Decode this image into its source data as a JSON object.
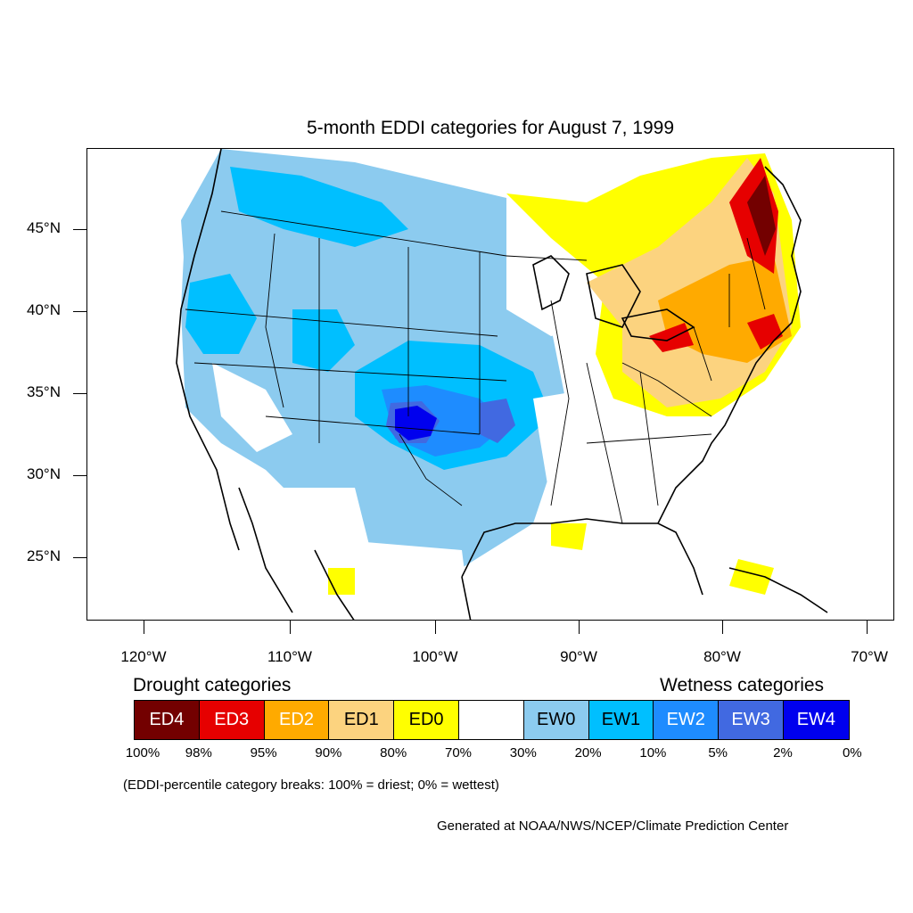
{
  "title": "5-month EDDI categories for August 7, 1999",
  "lat_labels": [
    "45°N",
    "40°N",
    "35°N",
    "30°N",
    "25°N"
  ],
  "lon_labels": [
    "120°W",
    "110°W",
    "100°W",
    "90°W",
    "80°W",
    "70°W"
  ],
  "legend": {
    "drought_heading": "Drought categories",
    "wetness_heading": "Wetness categories",
    "categories": [
      {
        "label": "ED4",
        "color": "#730000",
        "text_color": "#ffffff"
      },
      {
        "label": "ED3",
        "color": "#e60000",
        "text_color": "#ffffff"
      },
      {
        "label": "ED2",
        "color": "#ffaa00",
        "text_color": "#ffffff"
      },
      {
        "label": "ED1",
        "color": "#fcd37f",
        "text_color": "#000000"
      },
      {
        "label": "ED0",
        "color": "#ffff00",
        "text_color": "#000000"
      },
      {
        "label": "",
        "color": "#ffffff",
        "text_color": "#000000"
      },
      {
        "label": "EW0",
        "color": "#8ccbef",
        "text_color": "#000000"
      },
      {
        "label": "EW1",
        "color": "#00bfff",
        "text_color": "#000000"
      },
      {
        "label": "EW2",
        "color": "#1e8cff",
        "text_color": "#ffffff"
      },
      {
        "label": "EW3",
        "color": "#4169e1",
        "text_color": "#ffffff"
      },
      {
        "label": "EW4",
        "color": "#0000ee",
        "text_color": "#ffffff"
      }
    ],
    "percent_breaks": [
      "100%",
      "98%",
      "95%",
      "90%",
      "80%",
      "70%",
      "30%",
      "20%",
      "10%",
      "5%",
      "2%",
      "0%"
    ]
  },
  "note": "(EDDI-percentile category breaks: 100% = driest; 0% = wettest)",
  "credit": "Generated at NOAA/NWS/NCEP/Climate Prediction Center"
}
